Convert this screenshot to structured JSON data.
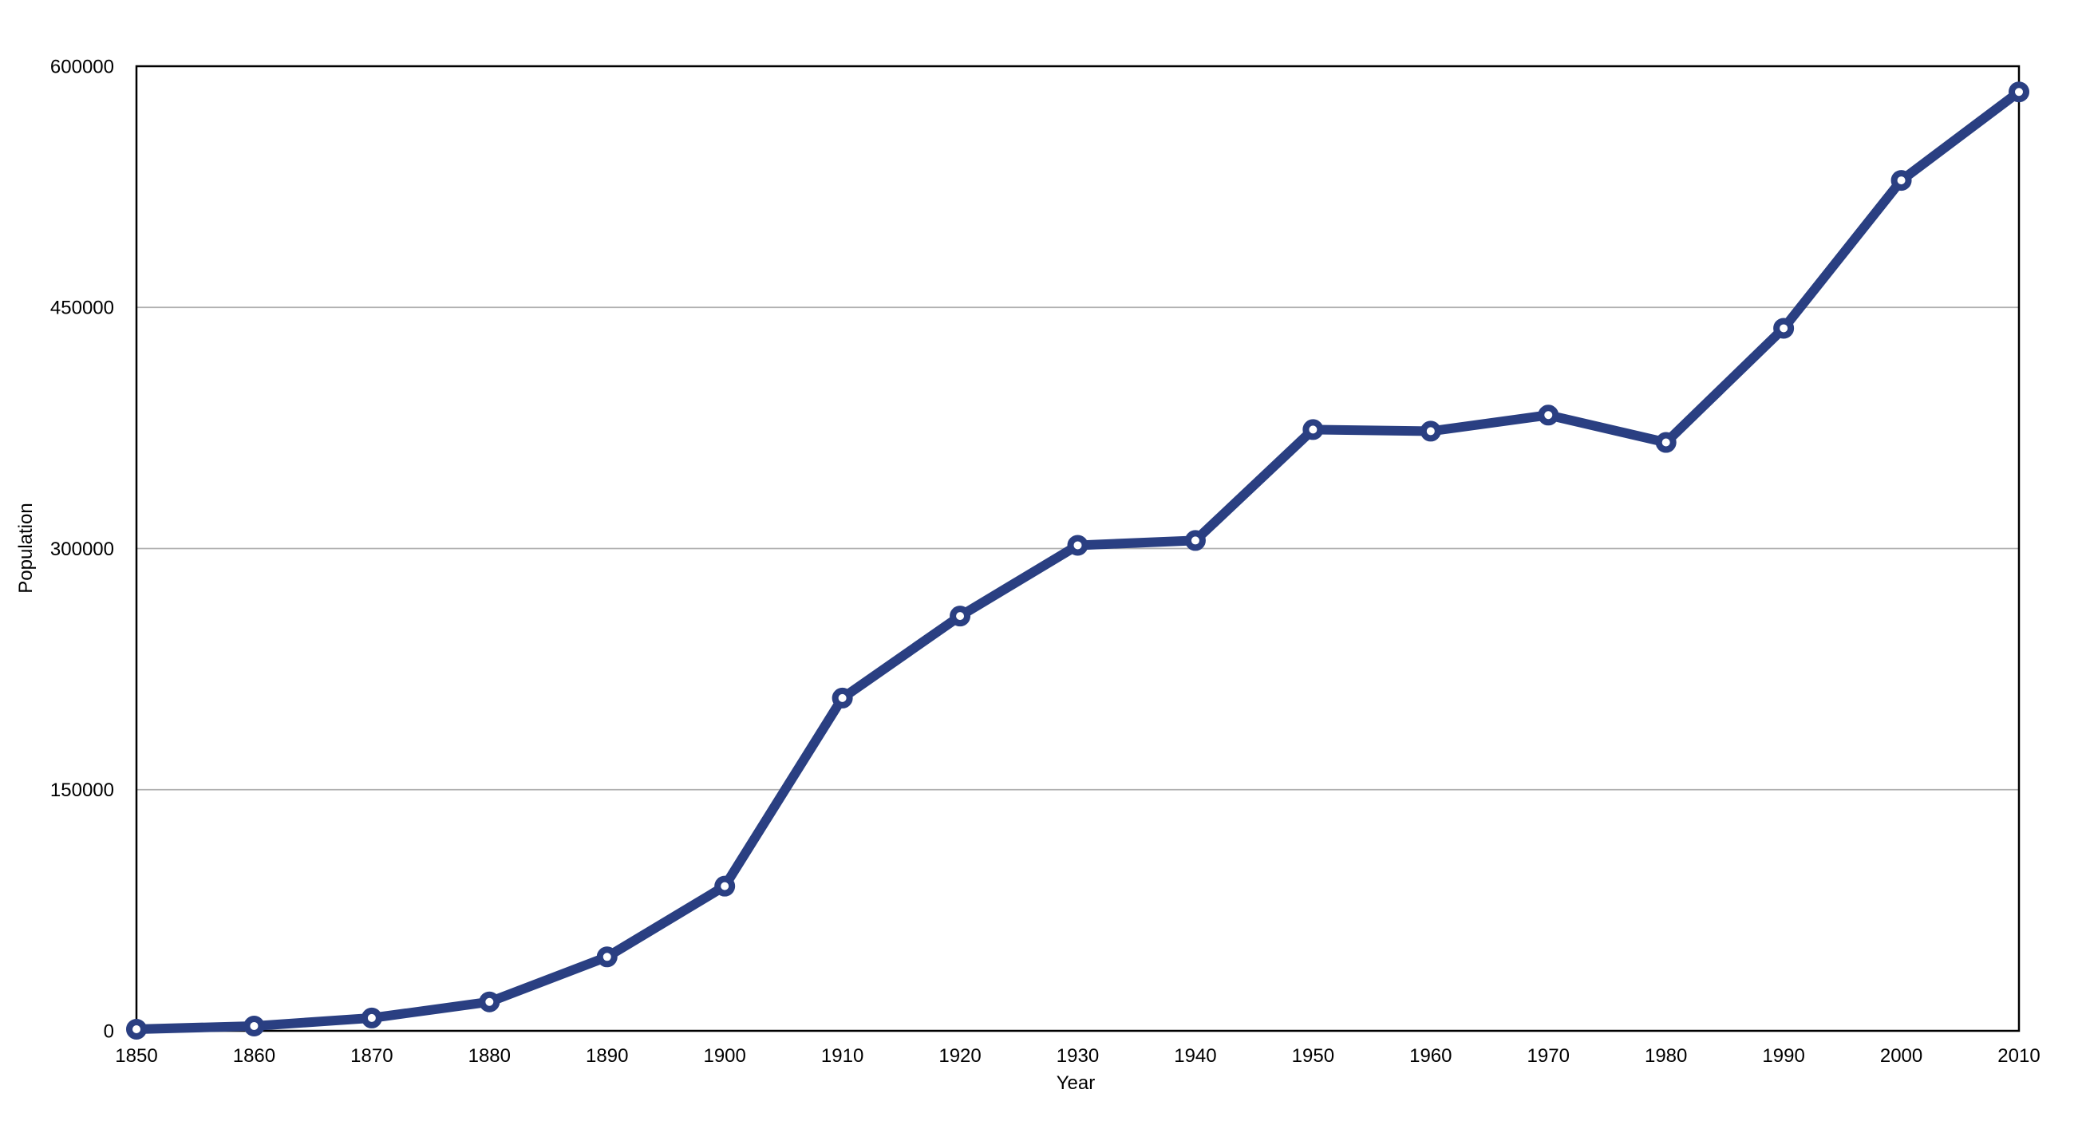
{
  "chart_data": {
    "type": "line",
    "title": "",
    "xlabel": "Year",
    "ylabel": "Population",
    "x": [
      1850,
      1860,
      1870,
      1880,
      1890,
      1900,
      1910,
      1920,
      1930,
      1940,
      1950,
      1960,
      1970,
      1980,
      1990,
      2000,
      2010
    ],
    "x_tick_labels": [
      "1850",
      "1860",
      "1870",
      "1880",
      "1890",
      "1900",
      "1910",
      "1920",
      "1930",
      "1940",
      "1950",
      "1960",
      "1970",
      "1980",
      "1990",
      "2000",
      "2010"
    ],
    "series": [
      {
        "name": "Population",
        "values": [
          1000,
          3000,
          8000,
          18000,
          46000,
          90000,
          207000,
          258000,
          302000,
          305000,
          374000,
          373000,
          383000,
          366000,
          437000,
          529000,
          584000
        ]
      }
    ],
    "ylim": [
      0,
      600000
    ],
    "y_ticks": [
      0,
      150000,
      300000,
      450000,
      600000
    ],
    "y_tick_labels": [
      "0",
      "150000",
      "300000",
      "450000",
      "600000"
    ],
    "grid": "horizontal",
    "legend": "none",
    "marker": "open-circle",
    "colors": {
      "line": "#2A3F82",
      "marker_fill": "#FFFFFF",
      "grid": "#B0B0B0",
      "axis": "#000000",
      "text": "#000000",
      "background": "#FFFFFF"
    }
  }
}
